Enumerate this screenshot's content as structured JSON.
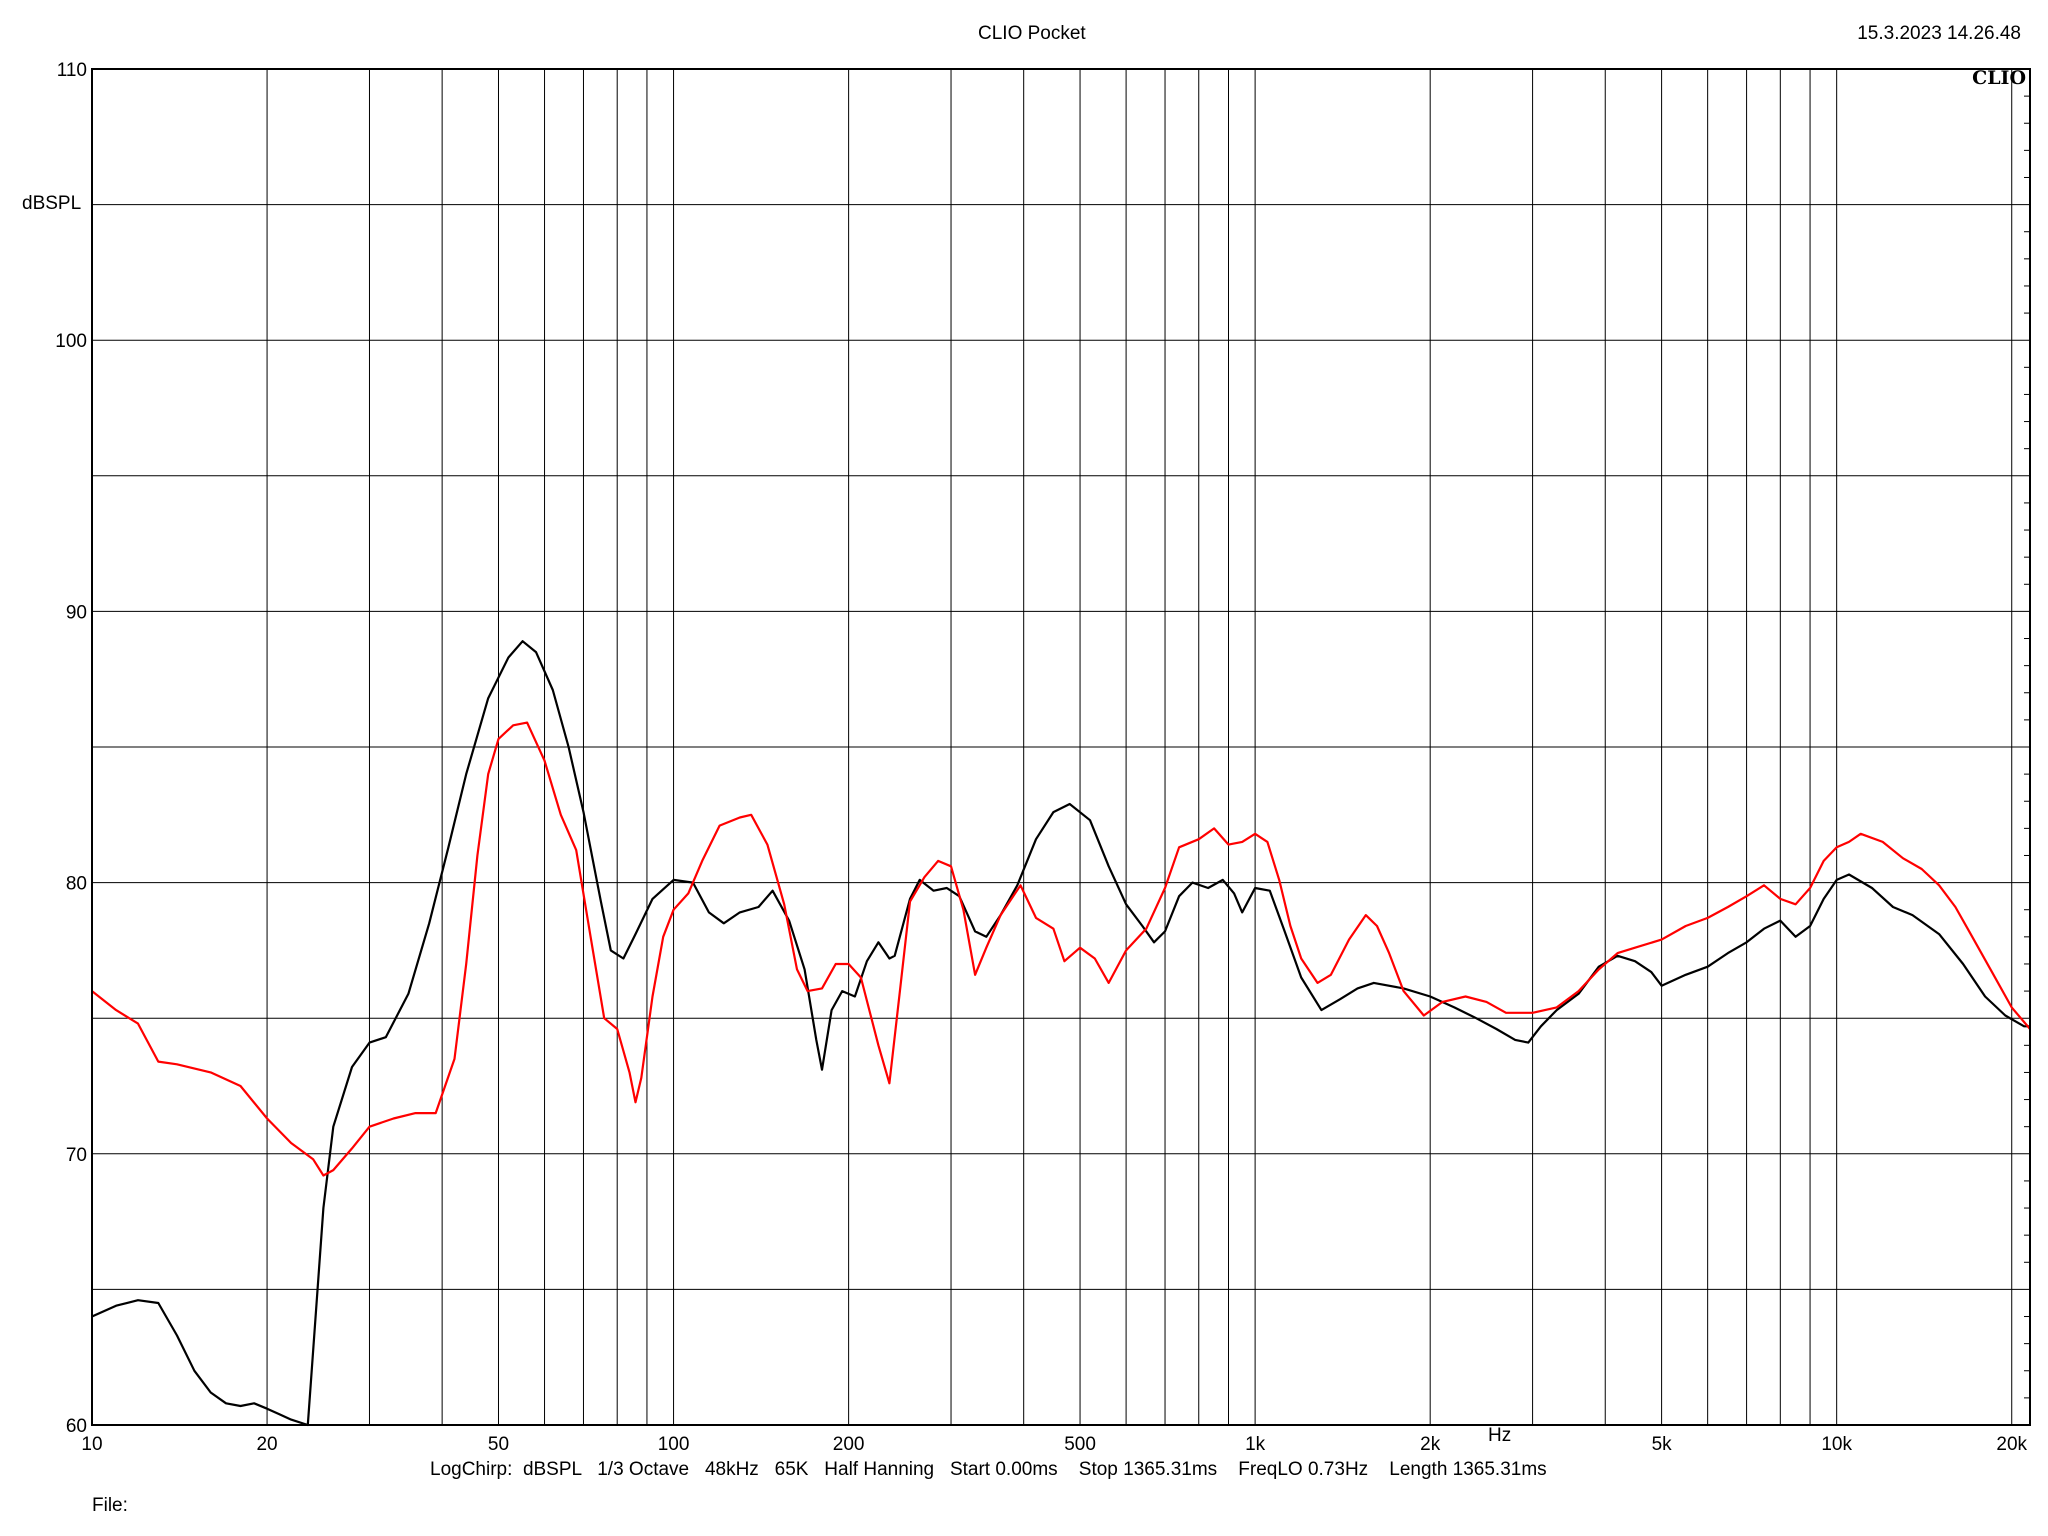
{
  "header": {
    "app_title": "CLIO Pocket",
    "timestamp": "15.3.2023 14.26.48",
    "logo": "CLIO"
  },
  "footer": {
    "settings_line": "LogChirp:  dBSPL   1/3 Octave   48kHz   65K   Half Hanning   Start 0.00ms    Stop 1365.31ms    FreqLO 0.73Hz    Length 1365.31ms",
    "file_label": "File:"
  },
  "chart_data": {
    "type": "line",
    "title": "",
    "xlabel": "Hz",
    "ylabel": "dBSPL",
    "x_scale": "log",
    "xlim": [
      10,
      21500
    ],
    "ylim": [
      60,
      110
    ],
    "grid": true,
    "x_ticks": [
      {
        "value": 10,
        "label": "10"
      },
      {
        "value": 20,
        "label": "20"
      },
      {
        "value": 50,
        "label": "50"
      },
      {
        "value": 100,
        "label": "100"
      },
      {
        "value": 200,
        "label": "200"
      },
      {
        "value": 500,
        "label": "500"
      },
      {
        "value": 1000,
        "label": "1k"
      },
      {
        "value": 2000,
        "label": "2k"
      },
      {
        "value": 5000,
        "label": "5k"
      },
      {
        "value": 10000,
        "label": "10k"
      },
      {
        "value": 20000,
        "label": "20k"
      }
    ],
    "y_ticks": [
      {
        "value": 60,
        "label": "60"
      },
      {
        "value": 70,
        "label": "70"
      },
      {
        "value": 80,
        "label": "80"
      },
      {
        "value": 90,
        "label": "90"
      },
      {
        "value": 100,
        "label": "100"
      },
      {
        "value": 110,
        "label": "110"
      }
    ],
    "series": [
      {
        "color": "#000000",
        "points": [
          [
            10,
            64.0
          ],
          [
            11,
            64.4
          ],
          [
            12,
            64.6
          ],
          [
            13,
            64.5
          ],
          [
            14,
            63.3
          ],
          [
            15,
            62.0
          ],
          [
            16,
            61.2
          ],
          [
            17,
            60.8
          ],
          [
            18,
            60.7
          ],
          [
            19,
            60.8
          ],
          [
            20,
            60.6
          ],
          [
            21,
            60.4
          ],
          [
            22,
            60.2
          ],
          [
            23.5,
            60.0
          ],
          [
            25,
            68.0
          ],
          [
            26,
            71.0
          ],
          [
            28,
            73.2
          ],
          [
            30,
            74.1
          ],
          [
            32,
            74.3
          ],
          [
            35,
            75.9
          ],
          [
            38,
            78.5
          ],
          [
            41,
            81.3
          ],
          [
            44,
            84.0
          ],
          [
            48,
            86.8
          ],
          [
            52,
            88.3
          ],
          [
            55,
            88.9
          ],
          [
            58,
            88.5
          ],
          [
            62,
            87.1
          ],
          [
            66,
            85.0
          ],
          [
            70,
            82.6
          ],
          [
            75,
            79.3
          ],
          [
            78,
            77.5
          ],
          [
            82,
            77.2
          ],
          [
            86,
            78.1
          ],
          [
            92,
            79.4
          ],
          [
            100,
            80.1
          ],
          [
            108,
            80.0
          ],
          [
            115,
            78.9
          ],
          [
            122,
            78.5
          ],
          [
            130,
            78.9
          ],
          [
            140,
            79.1
          ],
          [
            148,
            79.7
          ],
          [
            158,
            78.6
          ],
          [
            168,
            76.8
          ],
          [
            176,
            74.2
          ],
          [
            180,
            73.1
          ],
          [
            187,
            75.3
          ],
          [
            195,
            76.0
          ],
          [
            205,
            75.8
          ],
          [
            215,
            77.1
          ],
          [
            225,
            77.8
          ],
          [
            235,
            77.2
          ],
          [
            240,
            77.3
          ],
          [
            255,
            79.4
          ],
          [
            265,
            80.1
          ],
          [
            280,
            79.7
          ],
          [
            295,
            79.8
          ],
          [
            310,
            79.5
          ],
          [
            330,
            78.2
          ],
          [
            345,
            78.0
          ],
          [
            365,
            78.8
          ],
          [
            390,
            79.9
          ],
          [
            420,
            81.6
          ],
          [
            450,
            82.6
          ],
          [
            480,
            82.9
          ],
          [
            520,
            82.3
          ],
          [
            560,
            80.6
          ],
          [
            600,
            79.2
          ],
          [
            640,
            78.4
          ],
          [
            670,
            77.8
          ],
          [
            700,
            78.2
          ],
          [
            740,
            79.5
          ],
          [
            780,
            80.0
          ],
          [
            830,
            79.8
          ],
          [
            880,
            80.1
          ],
          [
            920,
            79.6
          ],
          [
            950,
            78.9
          ],
          [
            1000,
            79.8
          ],
          [
            1060,
            79.7
          ],
          [
            1120,
            78.3
          ],
          [
            1200,
            76.5
          ],
          [
            1300,
            75.3
          ],
          [
            1400,
            75.7
          ],
          [
            1500,
            76.1
          ],
          [
            1600,
            76.3
          ],
          [
            1800,
            76.1
          ],
          [
            2000,
            75.8
          ],
          [
            2200,
            75.4
          ],
          [
            2400,
            75.0
          ],
          [
            2600,
            74.6
          ],
          [
            2800,
            74.2
          ],
          [
            2950,
            74.1
          ],
          [
            3100,
            74.7
          ],
          [
            3300,
            75.3
          ],
          [
            3600,
            75.9
          ],
          [
            3900,
            76.9
          ],
          [
            4200,
            77.3
          ],
          [
            4500,
            77.1
          ],
          [
            4800,
            76.7
          ],
          [
            5000,
            76.2
          ],
          [
            5500,
            76.6
          ],
          [
            6000,
            76.9
          ],
          [
            6500,
            77.4
          ],
          [
            7000,
            77.8
          ],
          [
            7500,
            78.3
          ],
          [
            8000,
            78.6
          ],
          [
            8500,
            78.0
          ],
          [
            9000,
            78.4
          ],
          [
            9500,
            79.4
          ],
          [
            10000,
            80.1
          ],
          [
            10500,
            80.3
          ],
          [
            11500,
            79.8
          ],
          [
            12500,
            79.1
          ],
          [
            13500,
            78.8
          ],
          [
            15000,
            78.1
          ],
          [
            16500,
            77.0
          ],
          [
            18000,
            75.8
          ],
          [
            19500,
            75.1
          ],
          [
            21000,
            74.7
          ],
          [
            21500,
            74.7
          ]
        ]
      },
      {
        "color": "#ff0000",
        "points": [
          [
            10,
            76.0
          ],
          [
            11,
            75.3
          ],
          [
            12,
            74.8
          ],
          [
            13,
            73.4
          ],
          [
            14,
            73.3
          ],
          [
            16,
            73.0
          ],
          [
            18,
            72.5
          ],
          [
            20,
            71.3
          ],
          [
            22,
            70.4
          ],
          [
            24,
            69.8
          ],
          [
            25,
            69.2
          ],
          [
            26,
            69.4
          ],
          [
            28,
            70.2
          ],
          [
            30,
            71.0
          ],
          [
            33,
            71.3
          ],
          [
            36,
            71.5
          ],
          [
            39,
            71.5
          ],
          [
            42,
            73.5
          ],
          [
            44,
            77.0
          ],
          [
            46,
            81.0
          ],
          [
            48,
            84.0
          ],
          [
            50,
            85.3
          ],
          [
            53,
            85.8
          ],
          [
            56,
            85.9
          ],
          [
            60,
            84.5
          ],
          [
            64,
            82.5
          ],
          [
            68,
            81.2
          ],
          [
            72,
            78.0
          ],
          [
            76,
            75.0
          ],
          [
            80,
            74.6
          ],
          [
            84,
            73.0
          ],
          [
            86,
            71.9
          ],
          [
            88,
            72.8
          ],
          [
            92,
            75.8
          ],
          [
            96,
            78.0
          ],
          [
            100,
            79.0
          ],
          [
            106,
            79.6
          ],
          [
            112,
            80.8
          ],
          [
            120,
            82.1
          ],
          [
            130,
            82.4
          ],
          [
            136,
            82.5
          ],
          [
            145,
            81.4
          ],
          [
            155,
            79.2
          ],
          [
            163,
            76.8
          ],
          [
            170,
            76.0
          ],
          [
            180,
            76.1
          ],
          [
            190,
            77.0
          ],
          [
            200,
            77.0
          ],
          [
            210,
            76.5
          ],
          [
            225,
            74.0
          ],
          [
            235,
            72.6
          ],
          [
            245,
            76.0
          ],
          [
            255,
            79.3
          ],
          [
            270,
            80.2
          ],
          [
            285,
            80.8
          ],
          [
            300,
            80.6
          ],
          [
            315,
            79.0
          ],
          [
            330,
            76.6
          ],
          [
            345,
            77.6
          ],
          [
            365,
            78.8
          ],
          [
            395,
            79.9
          ],
          [
            420,
            78.7
          ],
          [
            450,
            78.3
          ],
          [
            470,
            77.1
          ],
          [
            500,
            77.6
          ],
          [
            530,
            77.2
          ],
          [
            560,
            76.3
          ],
          [
            600,
            77.5
          ],
          [
            650,
            78.3
          ],
          [
            700,
            79.8
          ],
          [
            740,
            81.3
          ],
          [
            800,
            81.6
          ],
          [
            850,
            82.0
          ],
          [
            900,
            81.4
          ],
          [
            950,
            81.5
          ],
          [
            1000,
            81.8
          ],
          [
            1050,
            81.5
          ],
          [
            1100,
            80.1
          ],
          [
            1150,
            78.4
          ],
          [
            1200,
            77.2
          ],
          [
            1280,
            76.3
          ],
          [
            1350,
            76.6
          ],
          [
            1450,
            77.9
          ],
          [
            1550,
            78.8
          ],
          [
            1620,
            78.4
          ],
          [
            1700,
            77.4
          ],
          [
            1800,
            76.0
          ],
          [
            1950,
            75.1
          ],
          [
            2100,
            75.6
          ],
          [
            2300,
            75.8
          ],
          [
            2500,
            75.6
          ],
          [
            2700,
            75.2
          ],
          [
            3000,
            75.2
          ],
          [
            3300,
            75.4
          ],
          [
            3600,
            76.0
          ],
          [
            3900,
            76.8
          ],
          [
            4200,
            77.4
          ],
          [
            4500,
            77.6
          ],
          [
            5000,
            77.9
          ],
          [
            5500,
            78.4
          ],
          [
            6000,
            78.7
          ],
          [
            6500,
            79.1
          ],
          [
            7000,
            79.5
          ],
          [
            7500,
            79.9
          ],
          [
            8000,
            79.4
          ],
          [
            8500,
            79.2
          ],
          [
            9000,
            79.8
          ],
          [
            9500,
            80.8
          ],
          [
            10000,
            81.3
          ],
          [
            10500,
            81.5
          ],
          [
            11000,
            81.8
          ],
          [
            12000,
            81.5
          ],
          [
            13000,
            80.9
          ],
          [
            14000,
            80.5
          ],
          [
            15000,
            79.9
          ],
          [
            16000,
            79.1
          ],
          [
            17000,
            78.1
          ],
          [
            18500,
            76.7
          ],
          [
            20000,
            75.4
          ],
          [
            21500,
            74.6
          ]
        ]
      }
    ]
  }
}
